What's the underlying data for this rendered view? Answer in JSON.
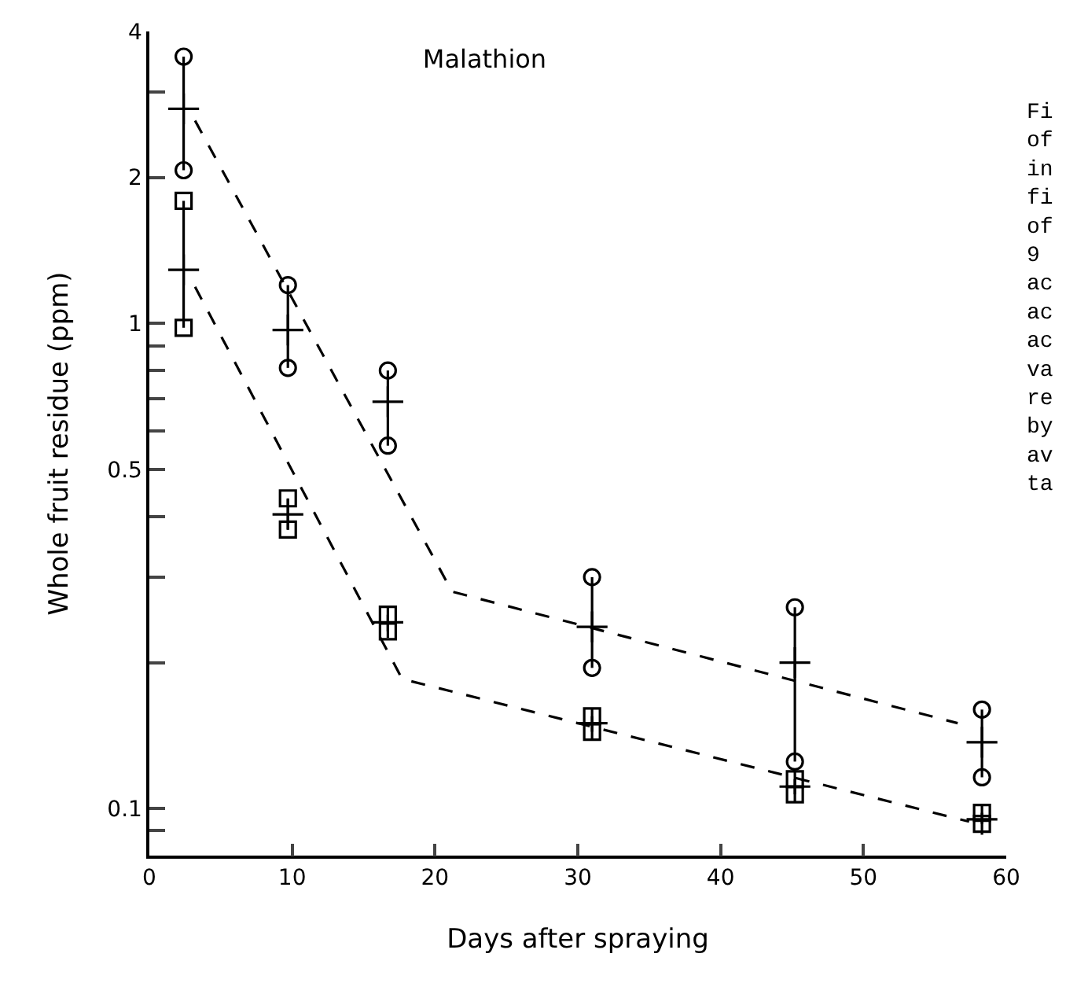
{
  "chart_data": {
    "type": "scatter",
    "title": "Malathion",
    "xlabel": "Days after spraying",
    "ylabel": "Whole fruit residue (ppm)",
    "log": true,
    "xlim": [
      0,
      60
    ],
    "xticks": [
      0,
      10,
      20,
      30,
      40,
      50,
      60
    ],
    "ylim": [
      0.08,
      4
    ],
    "yticks": [
      {
        "value": 0.09,
        "label": null
      },
      0.1,
      {
        "value": 0.2,
        "label": null
      },
      {
        "value": 0.3,
        "label": null
      },
      {
        "value": 0.4,
        "label": null
      },
      0.5,
      {
        "value": 0.6,
        "label": null
      },
      {
        "value": 0.7,
        "label": null
      },
      {
        "value": 0.8,
        "label": null
      },
      {
        "value": 0.9,
        "label": null
      },
      1,
      2,
      {
        "value": 3,
        "label": null
      },
      4
    ],
    "annotations": [
      "Fi\nof\nin\nfi\nof\n9\nac\nac\nac\nva\nre\nby\nav\nta"
    ],
    "series": [
      {
        "marker": "circle",
        "color": "#000000",
        "x": [
          2.4,
          2.4,
          9.7,
          9.7,
          16.7,
          16.7,
          31,
          31,
          45.2,
          45.2,
          58.3,
          58.3
        ],
        "values": [
          3.55,
          2.07,
          1.2,
          0.81,
          0.8,
          0.56,
          0.3,
          0.195,
          0.26,
          0.125,
          0.16,
          0.116
        ]
      },
      {
        "marker": "cross",
        "color": "#000000",
        "x": [
          2.4,
          9.7,
          16.7,
          31,
          45.2,
          58.3
        ],
        "values": [
          2.77,
          0.97,
          0.69,
          0.237,
          0.2,
          0.137
        ],
        "errors": [
          [
            2.07,
            3.55
          ],
          [
            0.81,
            1.2
          ],
          [
            0.56,
            0.8
          ],
          [
            0.195,
            0.3
          ],
          [
            0.125,
            0.26
          ],
          [
            0.116,
            0.16
          ]
        ]
      },
      {
        "type": "line",
        "marker": "none",
        "line_style": "dashed",
        "color": "#000000",
        "x": [
          3.2,
          21.2,
          56.6
        ],
        "values": [
          2.62,
          0.28,
          0.15
        ]
      },
      {
        "marker": "square",
        "color": "#000000",
        "x": [
          2.4,
          2.4,
          9.7,
          9.7,
          16.7,
          16.7,
          31,
          31,
          45.2,
          45.2,
          58.3,
          58.3
        ],
        "values": [
          1.79,
          0.98,
          0.436,
          0.376,
          0.251,
          0.232,
          0.155,
          0.144,
          0.115,
          0.107,
          0.098,
          0.093
        ]
      },
      {
        "marker": "cross",
        "color": "#000000",
        "x": [
          2.4,
          9.7,
          16.7,
          31,
          45.2,
          58.3
        ],
        "values": [
          1.29,
          0.404,
          0.242,
          0.15,
          0.111,
          0.095
        ],
        "errors": [
          [
            0.98,
            1.79
          ],
          [
            0.376,
            0.436
          ],
          [
            0.232,
            0.251
          ],
          [
            0.144,
            0.155
          ],
          [
            0.107,
            0.115
          ],
          [
            0.093,
            0.098
          ]
        ]
      },
      {
        "type": "line",
        "marker": "none",
        "line_style": "dashed",
        "color": "#000000",
        "x": [
          3.2,
          17.7,
          57.4
        ],
        "values": [
          1.19,
          0.185,
          0.094
        ]
      }
    ]
  }
}
